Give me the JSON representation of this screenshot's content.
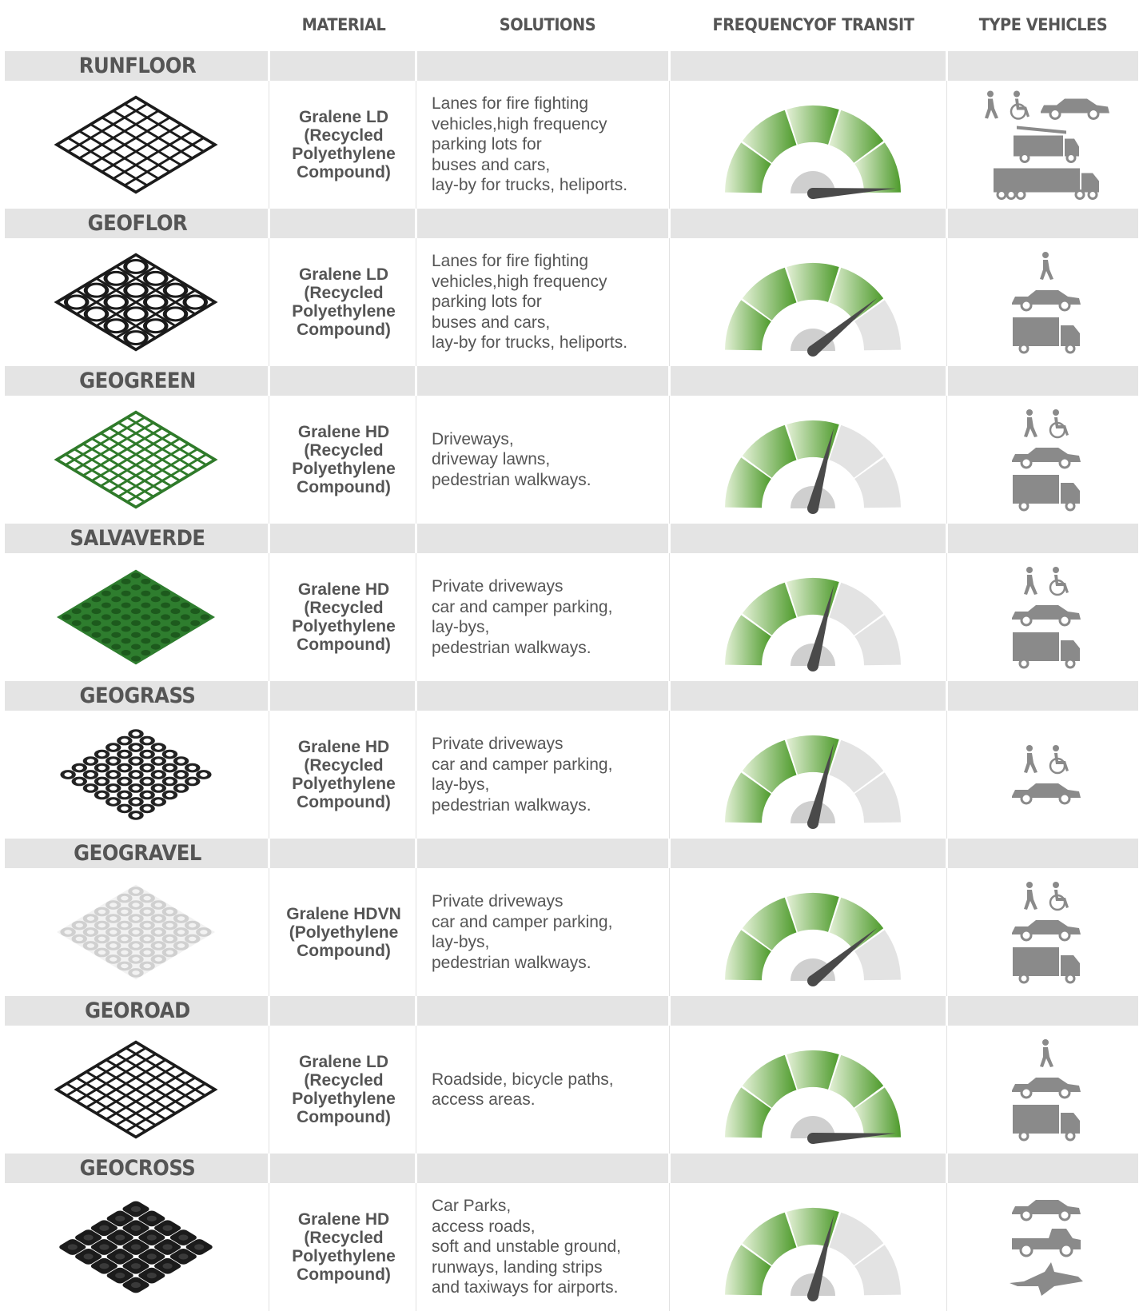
{
  "header": {
    "material": "MATERIAL",
    "solutions": "SOLUTIONS",
    "frequency_line1": "FREQUENCY",
    "frequency_line2": "OF TRANSIT",
    "type_vehicles": "TYPE VEHICLES"
  },
  "colors": {
    "band": "#e4e4e4",
    "text": "#555555",
    "icon": "#8a8a8a",
    "gauge_light": "#e3f0d6",
    "gauge_dark": "#4e9b2c",
    "gauge_inactive": "#e3e3e3"
  },
  "products": [
    {
      "name": "RUNFLOOR",
      "pattern": "black-wavy-grid",
      "material": "Gralene LD\n(Recycled\nPolyethylene\nCompound)",
      "solutions": [
        "Lanes for fire fighting",
        "vehicles,high frequency",
        "parking lots for",
        "buses and cars,",
        "lay-by for trucks, heliports."
      ],
      "frequency_level": 5,
      "vehicles": [
        "pedestrian-icon",
        "wheelchair-icon",
        "car-icon",
        "fire-truck-icon",
        "truck-icon"
      ]
    },
    {
      "name": "GEOFLOR",
      "pattern": "black-circle-grid",
      "material": "Gralene LD\n(Recycled\nPolyethylene\nCompound)",
      "solutions": [
        "Lanes for fire fighting",
        "vehicles,high frequency",
        "parking lots for",
        "buses and cars,",
        "lay-by for trucks, heliports."
      ],
      "frequency_level": 4,
      "vehicles": [
        "pedestrian-icon",
        "car-icon",
        "van-truck-icon"
      ]
    },
    {
      "name": "GEOGREEN",
      "pattern": "green-grid",
      "material": "Gralene HD\n(Recycled\nPolyethylene\nCompound)",
      "solutions": [
        "Driveways,",
        "driveway lawns,",
        "pedestrian walkways."
      ],
      "frequency_level": 3,
      "vehicles": [
        "pedestrian-icon",
        "wheelchair-icon",
        "car-icon",
        "van-truck-icon"
      ]
    },
    {
      "name": "SALVAVERDE",
      "pattern": "green-honeycomb",
      "material": "Gralene HD\n(Recycled\nPolyethylene\nCompound)",
      "solutions": [
        "Private driveways",
        "car and camper parking,",
        "lay-bys,",
        "pedestrian walkways."
      ],
      "frequency_level": 3,
      "vehicles": [
        "pedestrian-icon",
        "wheelchair-icon",
        "car-icon",
        "van-truck-icon"
      ]
    },
    {
      "name": "GEOGRASS",
      "pattern": "black-rings",
      "material": "Gralene HD\n(Recycled\nPolyethylene\nCompound)",
      "solutions": [
        "Private driveways",
        "car and camper parking,",
        "lay-bys,",
        "pedestrian walkways."
      ],
      "frequency_level": 3,
      "vehicles": [
        "pedestrian-icon",
        "wheelchair-icon",
        "car-icon"
      ]
    },
    {
      "name": "GEOGRAVEL",
      "pattern": "white-cells",
      "material": "Gralene HDVN\n(Polyethylene\nCompound)",
      "solutions": [
        "Private driveways",
        "car and camper parking,",
        "lay-bys,",
        "pedestrian walkways."
      ],
      "frequency_level": 4,
      "vehicles": [
        "pedestrian-icon",
        "wheelchair-icon",
        "car-icon",
        "van-truck-icon"
      ]
    },
    {
      "name": "GEOROAD",
      "pattern": "black-diagonal-grid",
      "material": "Gralene LD\n(Recycled\nPolyethylene\nCompound)",
      "solutions": [
        "Roadside, bicycle paths,",
        "access areas."
      ],
      "frequency_level": 5,
      "vehicles": [
        "pedestrian-icon",
        "car-icon",
        "van-truck-icon"
      ]
    },
    {
      "name": "GEOCROSS",
      "pattern": "black-hex-tiles",
      "material": "Gralene HD\n(Recycled\nPolyethylene\nCompound)",
      "solutions": [
        "Car Parks,",
        "access roads,",
        "soft and unstable ground,",
        "runways, landing strips",
        "and taxiways for airports."
      ],
      "frequency_level": 3,
      "vehicles": [
        "car-icon",
        "pickup-truck-icon",
        "airplane-icon"
      ]
    }
  ]
}
